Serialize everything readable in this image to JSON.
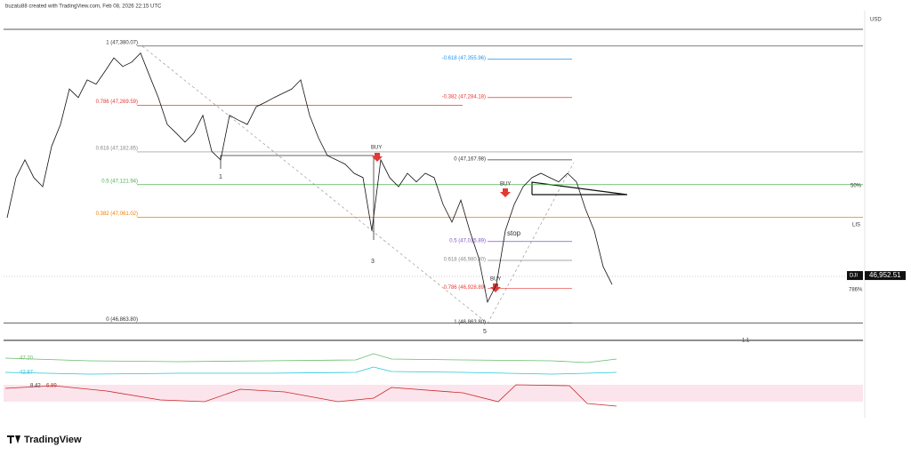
{
  "header": {
    "author_line": "buzatu88 created with TradingView.com, Feb 08, 2026 22:15 UTC",
    "currency": "USD"
  },
  "footer": {
    "logo": "TradingView"
  },
  "chart_data": {
    "type": "line",
    "symbol": "DJI",
    "last_price": {
      "value": 46952.51,
      "label": "46,952.51"
    },
    "color": "#111111",
    "ylim": [
      46845,
      47441
    ],
    "values": [
      47060,
      47135,
      47168,
      47135,
      47118,
      47193,
      47234,
      47300,
      47284,
      47317,
      47309,
      47333,
      47358,
      47342,
      47350,
      47367,
      47325,
      47284,
      47234,
      47218,
      47201,
      47218,
      47251,
      47184,
      47168,
      47251,
      47242,
      47234,
      47267,
      47275,
      47284,
      47292,
      47300,
      47317,
      47251,
      47209,
      47176,
      47168,
      47160,
      47143,
      47135,
      47036,
      47168,
      47135,
      47118,
      47143,
      47127,
      47143,
      47135,
      47085,
      47052,
      47093,
      47036,
      46986,
      46903,
      46936,
      47036,
      47085,
      47118,
      47135,
      47143,
      47135,
      47127,
      47143,
      47127,
      47077,
      47036,
      46969,
      46936
    ],
    "fib_left": [
      {
        "value": 47380.07,
        "label": "1 (47,380.07)",
        "color": "#333333"
      },
      {
        "value": 47269.59,
        "label": "0.786 (47,269.59)",
        "color": "#e53935"
      },
      {
        "value": 47182.85,
        "label": "0.618 (47,182.85)",
        "color": "#888888"
      },
      {
        "value": 47121.94,
        "label": "0.5 (47,121.94)",
        "color": "#4caf50"
      },
      {
        "value": 47061.02,
        "label": "0.382 (47,061.02)",
        "color": "#f57c00"
      },
      {
        "value": 46863.8,
        "label": "0 (46,863.80)",
        "color": "#333333"
      }
    ],
    "fib_right": [
      {
        "value": 47355.96,
        "label": "-0.618 (47,355.96)",
        "color": "#2196f3"
      },
      {
        "value": 47284.18,
        "label": "-0.382 (47,284.18)",
        "color": "#e53935"
      },
      {
        "value": 47167.98,
        "label": "0 (47,167.98)",
        "color": "#333333"
      },
      {
        "value": 47015.89,
        "label": "0.5 (47,015.89)",
        "color": "#7e57c2"
      },
      {
        "value": 46980.8,
        "label": "0.618 (46,980.80)",
        "color": "#888888"
      },
      {
        "value": 46928.89,
        "label": "0.786 (46,928.89)",
        "color": "#e53935"
      },
      {
        "value": 46863.8,
        "label": "1 (46,863.80)",
        "color": "#333333"
      }
    ],
    "annotations": [
      "BUY",
      "BUY",
      "BUY",
      "stop",
      "1",
      "3",
      "5",
      "50%",
      "786%",
      "LIS",
      "1:1",
      "47.20",
      "42.87",
      "8.42",
      "6.89"
    ]
  }
}
